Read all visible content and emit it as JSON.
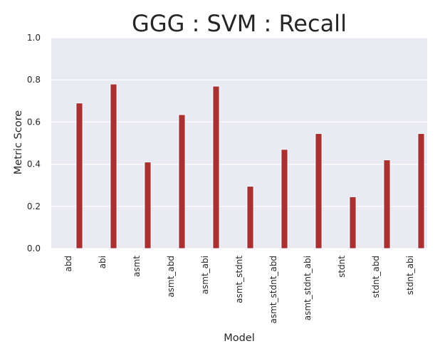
{
  "chart_data": {
    "type": "bar",
    "title": "GGG : SVM : Recall",
    "xlabel": "Model",
    "ylabel": "Metric Score",
    "categories": [
      "abd",
      "abi",
      "asmt",
      "asmt_abd",
      "asmt_abi",
      "asmt_stdnt",
      "asmt_stdnt_abd",
      "asmt_stdnt_abi",
      "stdnt",
      "stdnt_abd",
      "stdnt_abi"
    ],
    "values": [
      0.69,
      0.78,
      0.41,
      0.635,
      0.77,
      0.295,
      0.47,
      0.545,
      0.245,
      0.42,
      0.545
    ],
    "ylim": [
      0.0,
      1.0
    ],
    "yticks": [
      "0.0",
      "0.2",
      "0.4",
      "0.6",
      "0.8",
      "1.0"
    ],
    "grid": true,
    "bar_color": "#a83232",
    "background_color": "#eaeaf2"
  }
}
